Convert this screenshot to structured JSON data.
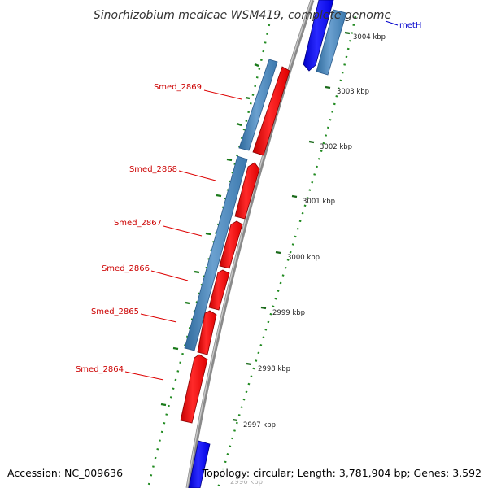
{
  "title": "Sinorhizobium medicae WSM419, complete genome",
  "accession": "Accession: NC_009636",
  "summary": "Topology: circular; Length: 3,781,904 bp; Genes: 3,592",
  "ticks": [
    "3004 kbp",
    "3003 kbp",
    "3002 kbp",
    "3001 kbp",
    "3000 kbp",
    "2999 kbp",
    "2998 kbp",
    "2997 kbp",
    "2996 kbp"
  ],
  "genes": [
    "Smed_2869",
    "Smed_2868",
    "Smed_2867",
    "Smed_2866",
    "Smed_2865",
    "Smed_2864",
    "metH"
  ],
  "colors": {
    "backbone": "#8a8a8a",
    "forward_gene": "#ff0000",
    "reverse_gene": "#0000ff",
    "cds_feature": "#4682b4",
    "gc_dots": "#228b22"
  }
}
